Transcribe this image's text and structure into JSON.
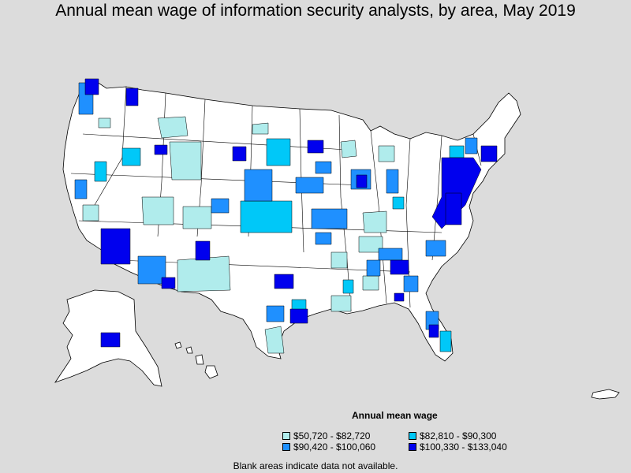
{
  "title": "Annual mean wage of information security analysts, by area, May 2019",
  "colors": {
    "background": "#dcdcdc",
    "no_data": "#ffffff",
    "tier1": "#b0ecec",
    "tier2": "#1f90ff",
    "tier3": "#00c8f8",
    "tier4": "#0000ee",
    "border": "#000000"
  },
  "legend": {
    "title": "Annual mean wage",
    "items": [
      {
        "label": "$50,720 - $82,720",
        "color": "#b0ecec"
      },
      {
        "label": "$82,810 - $90,300",
        "color": "#00c8f8"
      },
      {
        "label": "$90,420 - $100,060",
        "color": "#1f90ff"
      },
      {
        "label": "$100,330 - $133,040",
        "color": "#0000ee"
      }
    ]
  },
  "note": "Blank areas indicate data not available."
}
